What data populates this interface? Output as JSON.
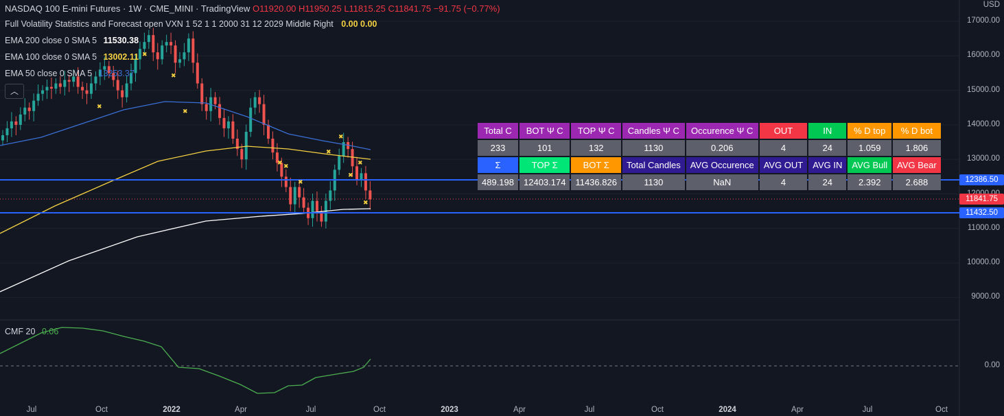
{
  "header": {
    "symbol": "NASDAQ 100 E-mini Futures",
    "interval": "1W",
    "exchange": "CME_MINI",
    "source": "TradingView",
    "open": "O11920.00",
    "high": "H11950.25",
    "low": "L11815.25",
    "close": "C11841.75",
    "change": "−91.75 (−0.77%)"
  },
  "indicator": {
    "label": "Full Volatility Statistics and Forecast open VXN 1 52 1 1 2000 31 12 2029 Middle Right",
    "values": "0.00 0.00"
  },
  "ema200": {
    "label": "EMA 200 close 0 SMA 5",
    "value": "11530.38",
    "color": "#ffffff"
  },
  "ema100": {
    "label": "EMA 100 close 0 SMA 5",
    "value": "13002.11",
    "color": "#f5d142"
  },
  "ema50": {
    "label": "EMA 50 close 0 SMA 5",
    "value": "13253.37",
    "color": "#3b6fd6"
  },
  "cmf": {
    "label": "CMF 20",
    "value": "0.06",
    "color": "#4caf50"
  },
  "collapse_icon": "chevron-up-icon",
  "price_axis": {
    "currency": "USD",
    "labels": [
      "17000.00",
      "16000.00",
      "15000.00",
      "14000.00",
      "13000.00",
      "12000.00",
      "11000.00",
      "10000.00",
      "9000.00"
    ],
    "cmf_zero": "0.00",
    "tags": {
      "upper_line": "12386.50",
      "last": "11841.75",
      "lower_line": "11432.50"
    }
  },
  "time_axis": [
    "Jul",
    "Oct",
    "2022",
    "Apr",
    "Jul",
    "Oct",
    "2023",
    "Apr",
    "Jul",
    "Oct",
    "2024",
    "Apr",
    "Jul",
    "Oct"
  ],
  "stats_table": {
    "row1": [
      {
        "t": "Total C",
        "c": "#9c27b0"
      },
      {
        "t": "BOT Ψ C",
        "c": "#9c27b0"
      },
      {
        "t": "TOP Ψ C",
        "c": "#9c27b0"
      },
      {
        "t": "Candles Ψ C",
        "c": "#9c27b0"
      },
      {
        "t": "Occurence Ψ C",
        "c": "#9c27b0"
      },
      {
        "t": "OUT",
        "c": "#f23645"
      },
      {
        "t": "IN",
        "c": "#00c853"
      },
      {
        "t": "% D top",
        "c": "#ff9800"
      },
      {
        "t": "% D bot",
        "c": "#ff9800"
      }
    ],
    "row2": [
      "233",
      "101",
      "132",
      "1130",
      "0.206",
      "4",
      "24",
      "1.059",
      "1.806"
    ],
    "row3": [
      {
        "t": "Σ",
        "c": "#2962ff"
      },
      {
        "t": "TOP Σ",
        "c": "#00e676"
      },
      {
        "t": "BOT Σ",
        "c": "#ff9800"
      },
      {
        "t": "Total Candles",
        "c": "#311b92"
      },
      {
        "t": "AVG Occurence",
        "c": "#311b92"
      },
      {
        "t": "AVG OUT",
        "c": "#311b92"
      },
      {
        "t": "AVG IN",
        "c": "#311b92"
      },
      {
        "t": "AVG Bull",
        "c": "#00c853"
      },
      {
        "t": "AVG Bear",
        "c": "#f23645"
      }
    ],
    "row4": [
      "489.198",
      "12403.174",
      "11436.826",
      "1130",
      "NaN",
      "4",
      "24",
      "2.392",
      "2.688"
    ]
  },
  "colors": {
    "up": "#26a69a",
    "down": "#ef5350",
    "bg": "#131722",
    "hline": "#2962ff"
  }
}
